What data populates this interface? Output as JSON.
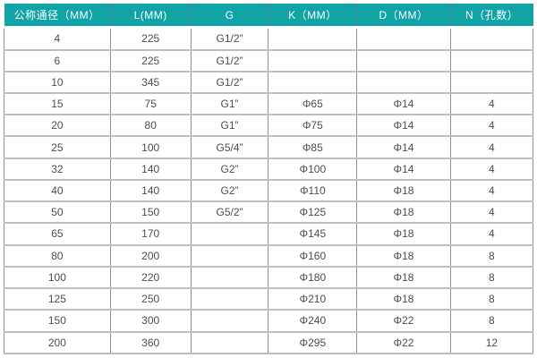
{
  "table": {
    "name": "dimension-spec-table",
    "headers": [
      "公称通径（MM）",
      "L(MM)",
      "G",
      "K（MM）",
      "D（MM）",
      "N（孔数）"
    ],
    "rows": [
      [
        "4",
        "225",
        "G1/2”",
        "",
        "",
        ""
      ],
      [
        "6",
        "225",
        "G1/2”",
        "",
        "",
        ""
      ],
      [
        "10",
        "345",
        "G1/2”",
        "",
        "",
        ""
      ],
      [
        "15",
        "75",
        "G1”",
        "Φ65",
        "Φ14",
        "4"
      ],
      [
        "20",
        "80",
        "G1”",
        "Φ75",
        "Φ14",
        "4"
      ],
      [
        "25",
        "100",
        "G5/4”",
        "Φ85",
        "Φ14",
        "4"
      ],
      [
        "32",
        "140",
        "G2”",
        "Φ100",
        "Φ14",
        "4"
      ],
      [
        "40",
        "140",
        "G2”",
        "Φ110",
        "Φ18",
        "4"
      ],
      [
        "50",
        "150",
        "G5/2”",
        "Φ125",
        "Φ18",
        "4"
      ],
      [
        "65",
        "170",
        "",
        "Φ145",
        "Φ18",
        "4"
      ],
      [
        "80",
        "200",
        "",
        "Φ160",
        "Φ18",
        "8"
      ],
      [
        "100",
        "220",
        "",
        "Φ180",
        "Φ18",
        "8"
      ],
      [
        "125",
        "250",
        "",
        "Φ210",
        "Φ18",
        "8"
      ],
      [
        "150",
        "300",
        "",
        "Φ240",
        "Φ22",
        "8"
      ],
      [
        "200",
        "360",
        "",
        "Φ295",
        "Φ22",
        "12"
      ]
    ],
    "colors": {
      "header_bg": "#11a4a7",
      "header_text": "#ffffff",
      "body_text": "#4d4d4d",
      "border_vertical": "#8f8f8f",
      "border_horizontal": "#bfbfbf",
      "row_bg": "#ffffff"
    }
  }
}
